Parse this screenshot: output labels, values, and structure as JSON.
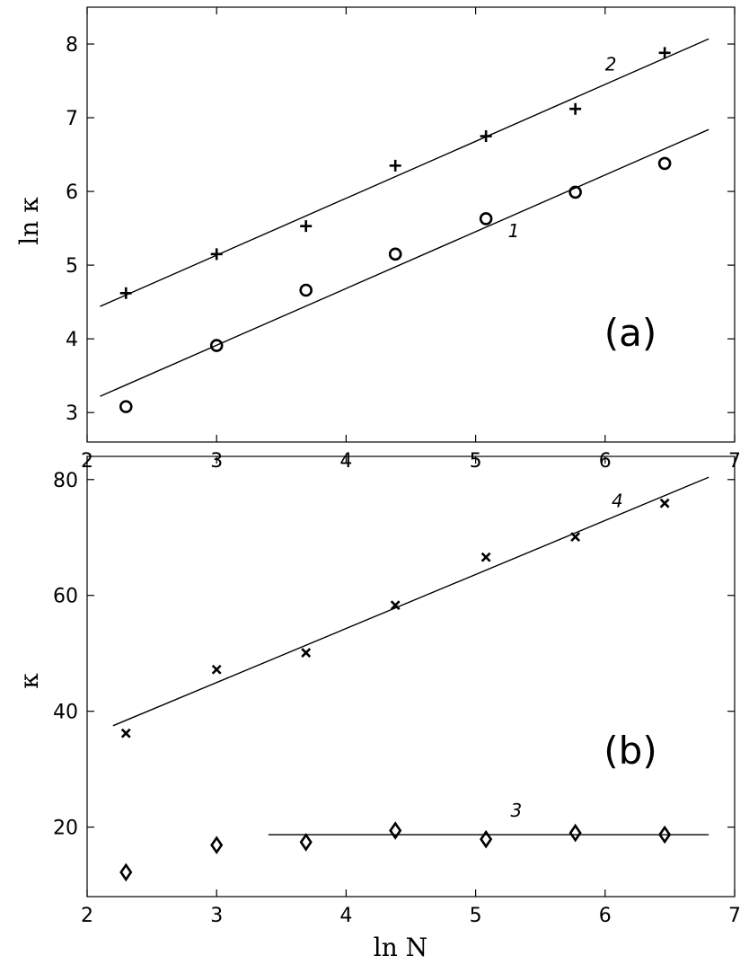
{
  "chart_data": [
    {
      "type": "scatter",
      "panel_tag": "(a)",
      "xlabel": "ln N",
      "ylabel": "ln κ",
      "xlim": [
        2,
        7
      ],
      "ylim": [
        2.6,
        8.5
      ],
      "xticks": [
        2,
        3,
        4,
        5,
        6,
        7
      ],
      "yticks": [
        3,
        4,
        5,
        6,
        7,
        8
      ],
      "grid": false,
      "series": [
        {
          "marker": "plus",
          "x": [
            2.3,
            3.0,
            3.69,
            4.38,
            5.08,
            5.77,
            6.46
          ],
          "y": [
            4.62,
            5.15,
            5.53,
            6.35,
            6.75,
            7.12,
            7.88
          ]
        },
        {
          "marker": "circle",
          "x": [
            2.3,
            3.0,
            3.69,
            4.38,
            5.08,
            5.77,
            6.46
          ],
          "y": [
            3.08,
            3.91,
            4.66,
            5.15,
            5.63,
            5.99,
            6.38
          ]
        }
      ],
      "fit_lines": [
        {
          "from": [
            2.1,
            4.44
          ],
          "to": [
            6.8,
            8.07
          ]
        },
        {
          "from": [
            2.1,
            3.22
          ],
          "to": [
            6.8,
            6.84
          ]
        }
      ],
      "annotations": [
        {
          "text": "2",
          "x": 6.0,
          "y": 7.64
        },
        {
          "text": "1",
          "x": 5.25,
          "y": 5.38
        }
      ]
    },
    {
      "type": "scatter",
      "panel_tag": "(b)",
      "xlabel": "ln N",
      "ylabel": "κ",
      "xlim": [
        2,
        7
      ],
      "ylim": [
        8,
        84
      ],
      "xticks": [
        2,
        3,
        4,
        5,
        6,
        7
      ],
      "yticks": [
        20,
        40,
        60,
        80
      ],
      "grid": false,
      "series": [
        {
          "marker": "cross",
          "x": [
            2.3,
            3.0,
            3.69,
            4.38,
            5.08,
            5.77,
            6.46
          ],
          "y": [
            36.2,
            47.2,
            50.1,
            58.3,
            66.6,
            70.1,
            75.9
          ]
        },
        {
          "marker": "diamond",
          "x": [
            2.3,
            3.0,
            3.69,
            4.38,
            5.08,
            5.77,
            6.46
          ],
          "y": [
            12.2,
            16.9,
            17.4,
            19.4,
            17.9,
            19.0,
            18.7
          ]
        }
      ],
      "fit_lines": [
        {
          "from": [
            2.2,
            37.5
          ],
          "to": [
            6.8,
            80.4
          ]
        },
        {
          "from": [
            3.4,
            18.7
          ],
          "to": [
            6.8,
            18.7
          ]
        }
      ],
      "annotations": [
        {
          "text": "4",
          "x": 6.05,
          "y": 75.2
        },
        {
          "text": "3",
          "x": 5.27,
          "y": 21.8
        }
      ]
    }
  ]
}
